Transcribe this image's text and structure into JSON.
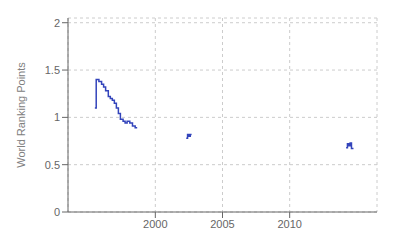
{
  "chart_data": {
    "type": "line",
    "title": "",
    "ylabel": "World Ranking Points",
    "color": "#3344bb",
    "grid": true,
    "xlim": [
      1993.5,
      2016.5
    ],
    "ylim": [
      0,
      2.05
    ],
    "xticks": [
      2000,
      2005,
      2010
    ],
    "yticks": [
      0,
      0.5,
      1,
      1.5,
      2
    ],
    "x": [
      1995.5,
      1995.6,
      1995.6,
      1995.8,
      1995.8,
      1996.0,
      1996.0,
      1996.15,
      1996.15,
      1996.3,
      1996.3,
      1996.5,
      1996.5,
      1996.65,
      1996.65,
      1996.8,
      1996.8,
      1996.95,
      1996.95,
      1997.1,
      1997.1,
      1997.25,
      1997.25,
      1997.4,
      1997.4,
      1997.6,
      1997.6,
      1997.75,
      1997.75,
      1997.9,
      1997.9,
      1998.1,
      1998.1,
      1998.3,
      1998.3,
      1998.5,
      1998.5,
      1998.65,
      null,
      2002.3,
      2002.4,
      2002.4,
      2002.5,
      2002.5,
      2002.6,
      2002.6,
      2002.7,
      null,
      2014.2,
      2014.3,
      2014.3,
      2014.4,
      2014.4,
      2014.5,
      2014.5,
      2014.6,
      2014.6,
      2014.75
    ],
    "values": [
      1.1,
      1.1,
      1.4,
      1.4,
      1.38,
      1.38,
      1.35,
      1.35,
      1.32,
      1.32,
      1.28,
      1.28,
      1.22,
      1.22,
      1.2,
      1.2,
      1.18,
      1.18,
      1.15,
      1.15,
      1.1,
      1.1,
      1.04,
      1.04,
      0.98,
      0.98,
      0.96,
      0.96,
      0.94,
      0.94,
      0.96,
      0.96,
      0.94,
      0.94,
      0.91,
      0.91,
      0.89,
      0.89,
      null,
      0.78,
      0.78,
      0.82,
      0.82,
      0.8,
      0.8,
      0.82,
      0.82,
      null,
      0.68,
      0.68,
      0.72,
      0.72,
      0.7,
      0.7,
      0.73,
      0.73,
      0.67,
      0.67
    ]
  }
}
